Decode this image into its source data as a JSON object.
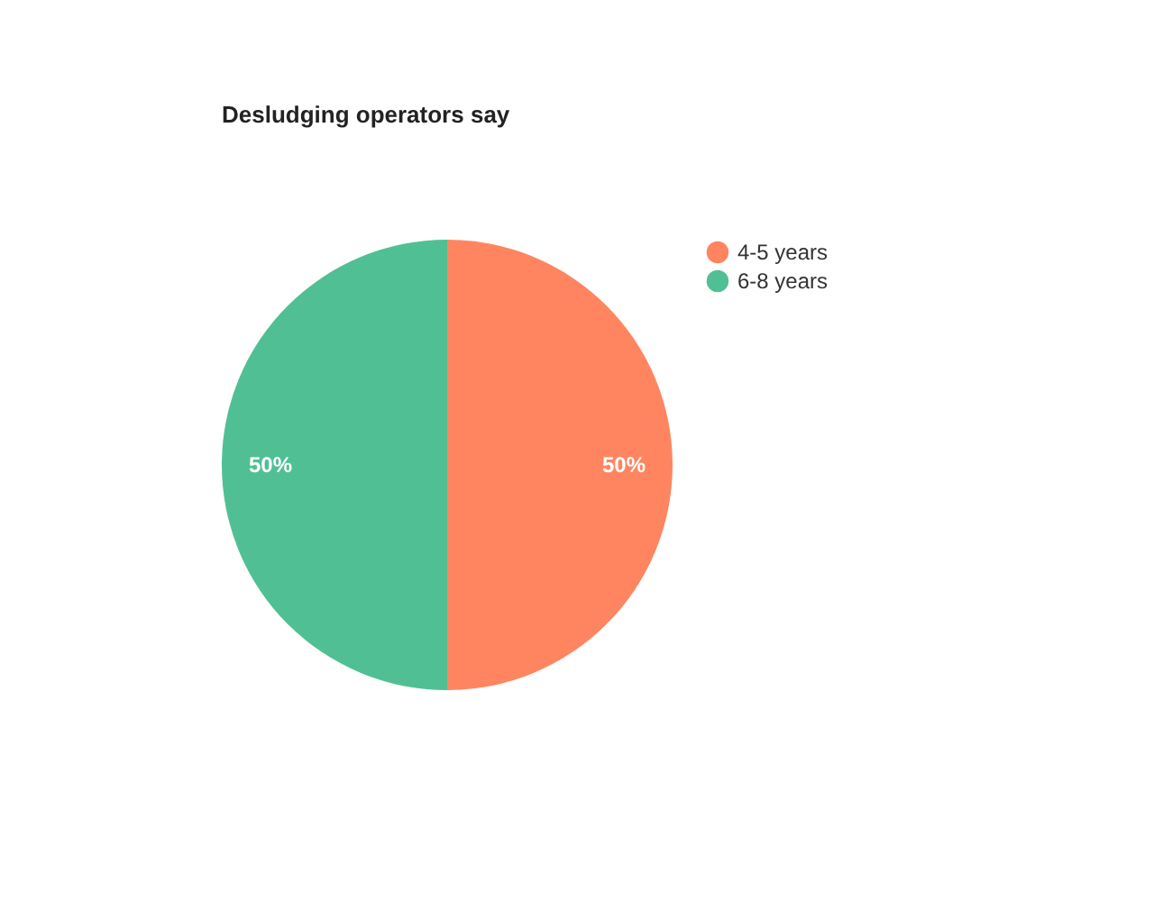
{
  "chart_data": {
    "type": "pie",
    "title": "Desludging operators say",
    "categories": [
      "4-5 years",
      "6-8 years"
    ],
    "values": [
      50,
      50
    ],
    "colors": [
      "#ff8560",
      "#50c094"
    ],
    "value_labels": [
      "50%",
      "50%"
    ],
    "legend": "right"
  }
}
